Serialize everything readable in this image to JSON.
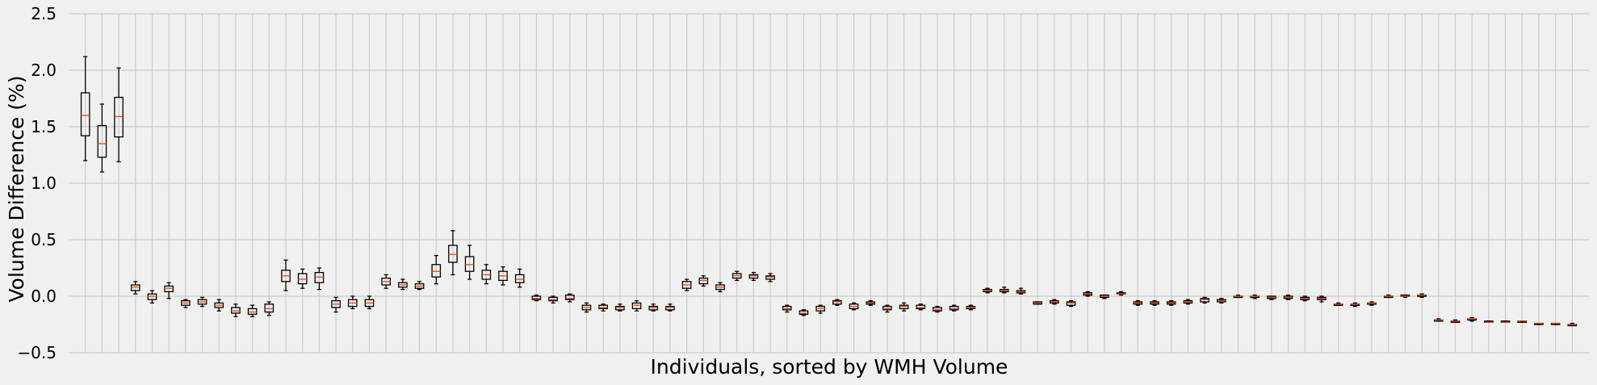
{
  "chart_data": {
    "type": "boxplot",
    "title": "",
    "xlabel": "Individuals, sorted by WMH Volume",
    "ylabel": "Volume Difference (%)",
    "ylim": [
      -0.5,
      2.5
    ],
    "yticks": [
      "−0.5",
      "0.0",
      "0.5",
      "1.0",
      "1.5",
      "2.0",
      "2.5"
    ],
    "ytick_values": [
      -0.5,
      0.0,
      0.5,
      1.0,
      1.5,
      2.0,
      2.5
    ],
    "grid": true,
    "colors": {
      "background": "#f0f0f0",
      "grid": "#cbcbcb",
      "box": "#000000",
      "median": "#e24a1b"
    },
    "boxes": [
      [
        1.2,
        1.42,
        1.6,
        1.8,
        2.12
      ],
      [
        1.1,
        1.23,
        1.35,
        1.51,
        1.7
      ],
      [
        1.19,
        1.41,
        1.59,
        1.76,
        2.02
      ],
      [
        0.02,
        0.05,
        0.08,
        0.1,
        0.13
      ],
      [
        -0.06,
        -0.03,
        0.0,
        0.02,
        0.05
      ],
      [
        -0.02,
        0.04,
        0.07,
        0.09,
        0.12
      ],
      [
        -0.1,
        -0.08,
        -0.06,
        -0.04,
        -0.03
      ],
      [
        -0.09,
        -0.07,
        -0.05,
        -0.03,
        -0.01
      ],
      [
        -0.13,
        -0.1,
        -0.08,
        -0.06,
        -0.03
      ],
      [
        -0.18,
        -0.15,
        -0.13,
        -0.1,
        -0.07
      ],
      [
        -0.18,
        -0.16,
        -0.14,
        -0.11,
        -0.08
      ],
      [
        -0.17,
        -0.14,
        -0.11,
        -0.07,
        -0.05
      ],
      [
        0.05,
        0.13,
        0.18,
        0.23,
        0.32
      ],
      [
        0.07,
        0.11,
        0.15,
        0.2,
        0.24
      ],
      [
        0.06,
        0.12,
        0.17,
        0.21,
        0.25
      ],
      [
        -0.14,
        -0.1,
        -0.07,
        -0.04,
        -0.01
      ],
      [
        -0.11,
        -0.09,
        -0.06,
        -0.03,
        0.0
      ],
      [
        -0.11,
        -0.09,
        -0.06,
        -0.03,
        0.0
      ],
      [
        0.07,
        0.1,
        0.13,
        0.16,
        0.19
      ],
      [
        0.06,
        0.08,
        0.1,
        0.12,
        0.15
      ],
      [
        0.06,
        0.07,
        0.09,
        0.11,
        0.13
      ],
      [
        0.11,
        0.17,
        0.22,
        0.28,
        0.36
      ],
      [
        0.19,
        0.3,
        0.37,
        0.45,
        0.58
      ],
      [
        0.15,
        0.22,
        0.28,
        0.35,
        0.45
      ],
      [
        0.11,
        0.15,
        0.19,
        0.23,
        0.28
      ],
      [
        0.1,
        0.14,
        0.18,
        0.22,
        0.26
      ],
      [
        0.08,
        0.12,
        0.15,
        0.19,
        0.24
      ],
      [
        -0.04,
        -0.03,
        -0.02,
        0.0,
        0.01
      ],
      [
        -0.06,
        -0.04,
        -0.03,
        -0.01,
        0.0
      ],
      [
        -0.05,
        -0.03,
        -0.02,
        0.01,
        0.02
      ],
      [
        -0.14,
        -0.12,
        -0.1,
        -0.08,
        -0.06
      ],
      [
        -0.13,
        -0.11,
        -0.1,
        -0.08,
        -0.07
      ],
      [
        -0.13,
        -0.12,
        -0.1,
        -0.09,
        -0.07
      ],
      [
        -0.13,
        -0.11,
        -0.08,
        -0.06,
        -0.04
      ],
      [
        -0.13,
        -0.12,
        -0.1,
        -0.09,
        -0.07
      ],
      [
        -0.13,
        -0.12,
        -0.1,
        -0.09,
        -0.07
      ],
      [
        0.05,
        0.07,
        0.1,
        0.13,
        0.15
      ],
      [
        0.09,
        0.11,
        0.14,
        0.16,
        0.18
      ],
      [
        0.04,
        0.06,
        0.08,
        0.1,
        0.12
      ],
      [
        0.14,
        0.16,
        0.18,
        0.2,
        0.22
      ],
      [
        0.14,
        0.16,
        0.18,
        0.19,
        0.21
      ],
      [
        0.13,
        0.15,
        0.17,
        0.18,
        0.2
      ],
      [
        -0.14,
        -0.12,
        -0.11,
        -0.09,
        -0.08
      ],
      [
        -0.17,
        -0.16,
        -0.15,
        -0.13,
        -0.12
      ],
      [
        -0.15,
        -0.13,
        -0.11,
        -0.09,
        -0.08
      ],
      [
        -0.08,
        -0.07,
        -0.05,
        -0.04,
        -0.03
      ],
      [
        -0.12,
        -0.11,
        -0.09,
        -0.07,
        -0.06
      ],
      [
        -0.08,
        -0.07,
        -0.06,
        -0.05,
        -0.04
      ],
      [
        -0.14,
        -0.12,
        -0.11,
        -0.09,
        -0.08
      ],
      [
        -0.13,
        -0.11,
        -0.09,
        -0.08,
        -0.06
      ],
      [
        -0.12,
        -0.11,
        -0.1,
        -0.08,
        -0.07
      ],
      [
        -0.14,
        -0.13,
        -0.12,
        -0.1,
        -0.09
      ],
      [
        -0.13,
        -0.12,
        -0.11,
        -0.09,
        -0.08
      ],
      [
        -0.12,
        -0.11,
        -0.1,
        -0.09,
        -0.08
      ],
      [
        0.03,
        0.04,
        0.05,
        0.06,
        0.07
      ],
      [
        0.03,
        0.04,
        0.05,
        0.06,
        0.08
      ],
      [
        0.02,
        0.03,
        0.04,
        0.05,
        0.07
      ],
      [
        -0.07,
        -0.07,
        -0.06,
        -0.05,
        -0.05
      ],
      [
        -0.07,
        -0.06,
        -0.05,
        -0.04,
        -0.03
      ],
      [
        -0.09,
        -0.08,
        -0.06,
        -0.05,
        -0.04
      ],
      [
        0.0,
        0.01,
        0.02,
        0.03,
        0.04
      ],
      [
        -0.02,
        -0.01,
        0.0,
        0.01,
        0.01
      ],
      [
        0.01,
        0.02,
        0.02,
        0.03,
        0.04
      ],
      [
        -0.08,
        -0.07,
        -0.06,
        -0.05,
        -0.04
      ],
      [
        -0.08,
        -0.07,
        -0.06,
        -0.05,
        -0.04
      ],
      [
        -0.08,
        -0.07,
        -0.06,
        -0.05,
        -0.04
      ],
      [
        -0.07,
        -0.06,
        -0.05,
        -0.04,
        -0.03
      ],
      [
        -0.06,
        -0.05,
        -0.03,
        -0.02,
        -0.01
      ],
      [
        -0.06,
        -0.05,
        -0.04,
        -0.03,
        -0.02
      ],
      [
        -0.01,
        -0.01,
        0.0,
        0.0,
        0.01
      ],
      [
        -0.02,
        -0.01,
        0.0,
        0.0,
        0.01
      ],
      [
        -0.03,
        -0.02,
        -0.01,
        0.0,
        0.0
      ],
      [
        -0.03,
        -0.02,
        -0.01,
        0.0,
        0.01
      ],
      [
        -0.04,
        -0.03,
        -0.02,
        -0.01,
        0.0
      ],
      [
        -0.05,
        -0.03,
        -0.02,
        -0.01,
        0.0
      ],
      [
        -0.08,
        -0.08,
        -0.07,
        -0.07,
        -0.06
      ],
      [
        -0.09,
        -0.08,
        -0.07,
        -0.07,
        -0.06
      ],
      [
        -0.08,
        -0.07,
        -0.06,
        -0.06,
        -0.05
      ],
      [
        -0.01,
        -0.01,
        0.0,
        0.0,
        0.01
      ],
      [
        -0.01,
        0.0,
        0.0,
        0.01,
        0.01
      ],
      [
        -0.01,
        0.0,
        0.01,
        0.01,
        0.02
      ],
      [
        -0.22,
        -0.22,
        -0.21,
        -0.21,
        -0.2
      ],
      [
        -0.23,
        -0.23,
        -0.22,
        -0.22,
        -0.21
      ],
      [
        -0.22,
        -0.21,
        -0.2,
        -0.2,
        -0.19
      ],
      [
        -0.23,
        -0.23,
        -0.23,
        -0.22,
        -0.22
      ],
      [
        -0.23,
        -0.23,
        -0.23,
        -0.22,
        -0.22
      ],
      [
        -0.23,
        -0.23,
        -0.22,
        -0.22,
        -0.22
      ],
      [
        -0.25,
        -0.24,
        -0.24,
        -0.24,
        -0.24
      ],
      [
        -0.25,
        -0.24,
        -0.24,
        -0.24,
        -0.24
      ],
      [
        -0.25,
        -0.25,
        -0.25,
        -0.25,
        -0.24
      ]
    ]
  }
}
